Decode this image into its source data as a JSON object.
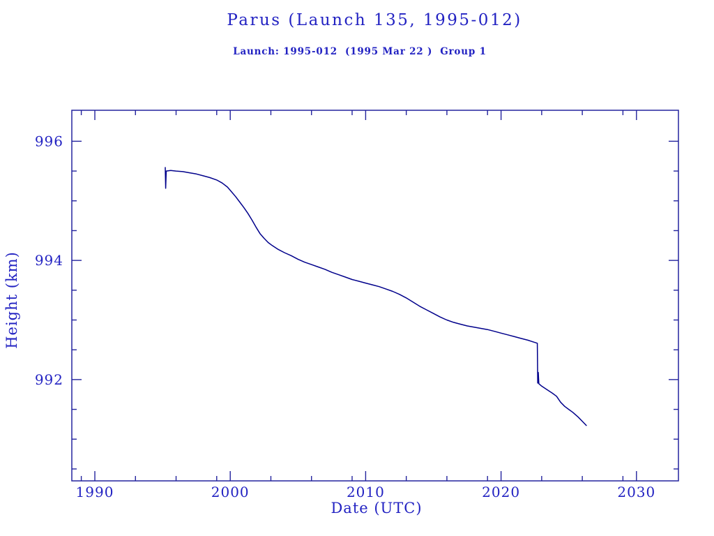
{
  "header": {
    "title": "Parus (Launch 135, 1995-012)",
    "subtitle": "Launch: 1995-012  (1995 Mar 22 )  Group 1"
  },
  "colors": {
    "text_ink": "#2222c2",
    "frame_ink": "#23239d",
    "curve": "#00008b",
    "background": "#ffffff"
  },
  "chart_data": {
    "type": "line",
    "title": "Parus (Launch 135, 1995-012)",
    "subtitle": "Launch: 1995-012  (1995 Mar 22 )  Group 1",
    "xlabel": "Date (UTC)",
    "ylabel": "Height (km)",
    "xlim": [
      1988.3,
      2033.1
    ],
    "ylim": [
      990.3,
      996.52
    ],
    "grid": false,
    "legend": "none",
    "x_major_ticks": [
      1990,
      2000,
      2010,
      2020,
      2030
    ],
    "x_major_labels": [
      "1990",
      "2000",
      "2010",
      "2020",
      "2030"
    ],
    "x_minor_ticks": [
      1989,
      1993,
      1996,
      1999,
      2003,
      2006,
      2009,
      2013,
      2016,
      2019,
      2023,
      2026,
      2029
    ],
    "y_major_ticks": [
      992,
      994,
      996
    ],
    "y_major_labels": [
      "992",
      "994",
      "996"
    ],
    "y_minor_ticks": [
      990.5,
      991,
      991.5,
      992.5,
      993,
      993.5,
      994.5,
      995,
      995.5
    ],
    "series": [
      {
        "name": "orbital-height-km",
        "color": "#00008b",
        "points": [
          [
            1995.2,
            995.56
          ],
          [
            1995.23,
            995.21
          ],
          [
            1995.27,
            995.5
          ],
          [
            1995.6,
            995.51
          ],
          [
            1996.0,
            995.5
          ],
          [
            1996.5,
            995.49
          ],
          [
            1997.0,
            995.47
          ],
          [
            1997.5,
            995.45
          ],
          [
            1998.0,
            995.42
          ],
          [
            1998.5,
            995.39
          ],
          [
            1999.0,
            995.35
          ],
          [
            1999.4,
            995.3
          ],
          [
            1999.8,
            995.23
          ],
          [
            2000.1,
            995.15
          ],
          [
            2000.4,
            995.07
          ],
          [
            2000.7,
            994.98
          ],
          [
            2001.0,
            994.89
          ],
          [
            2001.3,
            994.79
          ],
          [
            2001.6,
            994.68
          ],
          [
            2001.9,
            994.56
          ],
          [
            2002.2,
            994.45
          ],
          [
            2002.5,
            994.37
          ],
          [
            2002.8,
            994.3
          ],
          [
            2003.1,
            994.25
          ],
          [
            2003.5,
            994.19
          ],
          [
            2004.0,
            994.13
          ],
          [
            2004.5,
            994.08
          ],
          [
            2005.0,
            994.02
          ],
          [
            2005.5,
            993.97
          ],
          [
            2006.0,
            993.93
          ],
          [
            2006.5,
            993.89
          ],
          [
            2007.0,
            993.85
          ],
          [
            2007.5,
            993.8
          ],
          [
            2008.0,
            993.76
          ],
          [
            2008.5,
            993.72
          ],
          [
            2009.0,
            993.68
          ],
          [
            2009.5,
            993.65
          ],
          [
            2010.0,
            993.62
          ],
          [
            2010.5,
            993.59
          ],
          [
            2011.0,
            993.56
          ],
          [
            2011.5,
            993.52
          ],
          [
            2012.0,
            993.48
          ],
          [
            2012.5,
            993.43
          ],
          [
            2013.0,
            993.37
          ],
          [
            2013.5,
            993.3
          ],
          [
            2014.0,
            993.23
          ],
          [
            2014.5,
            993.17
          ],
          [
            2015.0,
            993.11
          ],
          [
            2015.5,
            993.05
          ],
          [
            2016.0,
            993.0
          ],
          [
            2016.5,
            992.96
          ],
          [
            2017.0,
            992.93
          ],
          [
            2017.5,
            992.9
          ],
          [
            2018.0,
            992.88
          ],
          [
            2018.5,
            992.86
          ],
          [
            2019.0,
            992.84
          ],
          [
            2019.5,
            992.81
          ],
          [
            2020.0,
            992.78
          ],
          [
            2020.5,
            992.75
          ],
          [
            2021.0,
            992.72
          ],
          [
            2021.5,
            992.69
          ],
          [
            2022.0,
            992.66
          ],
          [
            2022.4,
            992.63
          ],
          [
            2022.68,
            992.61
          ],
          [
            2022.71,
            991.94
          ],
          [
            2022.75,
            992.12
          ],
          [
            2022.79,
            991.93
          ],
          [
            2023.0,
            991.89
          ],
          [
            2023.4,
            991.83
          ],
          [
            2023.8,
            991.77
          ],
          [
            2024.1,
            991.72
          ],
          [
            2024.4,
            991.62
          ],
          [
            2024.7,
            991.55
          ],
          [
            2025.0,
            991.5
          ],
          [
            2025.3,
            991.45
          ],
          [
            2025.7,
            991.37
          ],
          [
            2026.0,
            991.3
          ],
          [
            2026.3,
            991.23
          ]
        ]
      }
    ]
  }
}
